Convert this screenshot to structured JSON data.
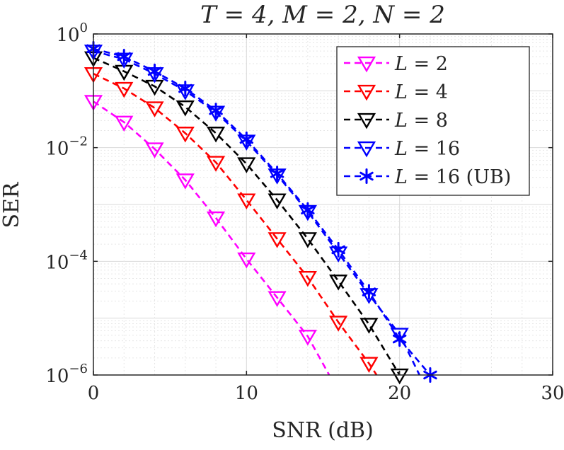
{
  "chart_data": {
    "type": "line",
    "title": "T = 4, M = 2, N = 2",
    "xlabel": "SNR (dB)",
    "ylabel": "SER",
    "xlim": [
      0,
      30
    ],
    "ylim": [
      1e-06,
      1
    ],
    "yscale": "log",
    "grid": true,
    "legend_position": "top-right",
    "x_ticks": [
      0,
      10,
      20,
      30
    ],
    "x_tick_labels": [
      "0",
      "10",
      "20",
      "30"
    ],
    "y_ticks": [
      1,
      0.01,
      0.0001,
      1e-06
    ],
    "y_tick_bases": [
      "10",
      "10",
      "10",
      "10"
    ],
    "y_tick_exponents": [
      "0",
      "−2",
      "−4",
      "−6"
    ],
    "series": [
      {
        "name": "L = 2",
        "legend_var": "L",
        "legend_rest": " = 2",
        "color": "#ff00ff",
        "marker": "triangle-down",
        "x": [
          0,
          2,
          4,
          6,
          8,
          10,
          12,
          14,
          15.4
        ],
        "values": [
          0.065,
          0.028,
          0.0095,
          0.0027,
          0.00058,
          0.00011,
          2.3e-05,
          4.8e-06,
          1e-06
        ],
        "marker_x": [
          0,
          2,
          4,
          6,
          8,
          10,
          12,
          14
        ],
        "marker_values": [
          0.065,
          0.028,
          0.0095,
          0.0027,
          0.00058,
          0.00011,
          2.3e-05,
          4.8e-06
        ]
      },
      {
        "name": "L = 4",
        "legend_var": "L",
        "legend_rest": " = 4",
        "color": "#ff0000",
        "marker": "triangle-down",
        "x": [
          0,
          2,
          4,
          6,
          8,
          10,
          12,
          14,
          16,
          18,
          18.5
        ],
        "values": [
          0.2,
          0.11,
          0.05,
          0.018,
          0.0055,
          0.0012,
          0.00025,
          5.2e-05,
          8.5e-06,
          1.6e-06,
          1e-06
        ],
        "marker_x": [
          0,
          2,
          4,
          6,
          8,
          10,
          12,
          14,
          16,
          18
        ],
        "marker_values": [
          0.2,
          0.11,
          0.05,
          0.018,
          0.0055,
          0.0012,
          0.00025,
          5.2e-05,
          8.5e-06,
          1.6e-06
        ]
      },
      {
        "name": "L = 8",
        "legend_var": "L",
        "legend_rest": " = 8",
        "color": "#000000",
        "marker": "triangle-down",
        "x": [
          0,
          2,
          4,
          6,
          8,
          10,
          12,
          14,
          16,
          18,
          20
        ],
        "values": [
          0.38,
          0.22,
          0.12,
          0.052,
          0.018,
          0.0052,
          0.0012,
          0.00025,
          4.5e-05,
          7.8e-06,
          1e-06
        ],
        "marker_x": [
          0,
          2,
          4,
          6,
          8,
          10,
          12,
          14,
          16,
          18,
          20
        ],
        "marker_values": [
          0.38,
          0.22,
          0.12,
          0.052,
          0.018,
          0.0052,
          0.0012,
          0.00025,
          4.5e-05,
          7.8e-06,
          1e-06
        ]
      },
      {
        "name": "L = 16",
        "legend_var": "L",
        "legend_rest": " = 16",
        "color": "#0000ff",
        "marker": "triangle-down",
        "x": [
          0,
          2,
          4,
          6,
          8,
          10,
          12,
          14,
          16,
          18,
          20,
          21.3
        ],
        "values": [
          0.5,
          0.36,
          0.2,
          0.1,
          0.042,
          0.013,
          0.0033,
          0.00075,
          0.00014,
          2.6e-05,
          5.2e-06,
          1e-06
        ],
        "marker_x": [
          0,
          2,
          4,
          6,
          8,
          10,
          12,
          14,
          16,
          18,
          20
        ],
        "marker_values": [
          0.5,
          0.36,
          0.2,
          0.1,
          0.042,
          0.013,
          0.0033,
          0.00075,
          0.00014,
          2.6e-05,
          5.2e-06
        ]
      },
      {
        "name": "L = 16 (UB)",
        "legend_var": "L",
        "legend_rest": " = 16 (UB)",
        "color": "#0000ff",
        "marker": "asterisk",
        "x": [
          0,
          2,
          4,
          6,
          8,
          10,
          12,
          14,
          16,
          18,
          20,
          22
        ],
        "values": [
          0.55,
          0.4,
          0.22,
          0.11,
          0.045,
          0.014,
          0.0035,
          0.0008,
          0.00016,
          2.9e-05,
          4.3e-06,
          1e-06
        ],
        "marker_x": [
          0,
          2,
          4,
          6,
          8,
          10,
          12,
          14,
          16,
          18,
          20,
          22
        ],
        "marker_values": [
          0.55,
          0.4,
          0.22,
          0.11,
          0.045,
          0.014,
          0.0035,
          0.0008,
          0.00016,
          2.9e-05,
          4.3e-06,
          1e-06
        ]
      }
    ]
  }
}
